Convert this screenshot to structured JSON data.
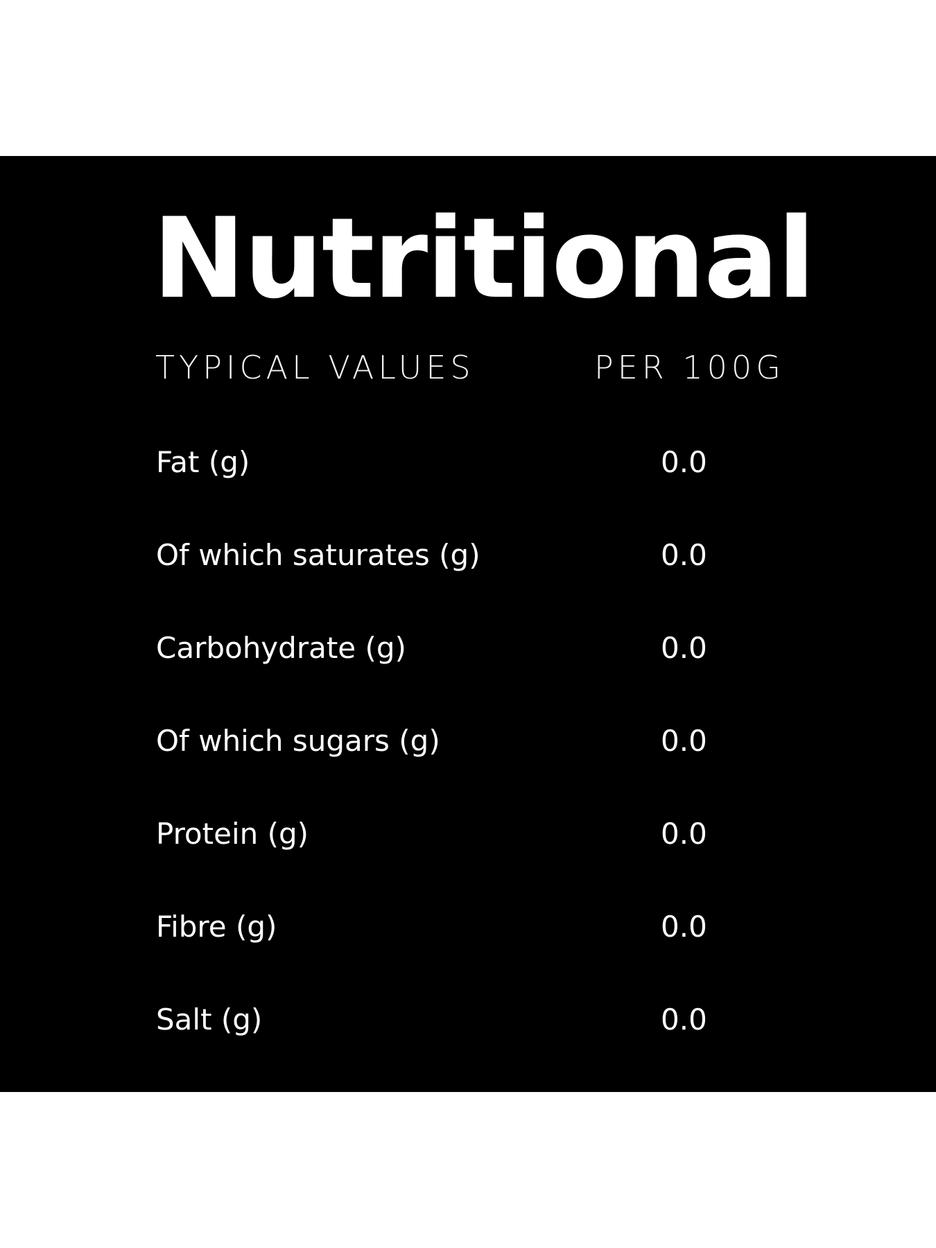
{
  "title": "Nutritional",
  "table": {
    "header": [
      "TYPICAL VALUES",
      "PER 100G"
    ],
    "rows": [
      [
        "Fat (g)",
        "0.0"
      ],
      [
        "Of which saturates (g)",
        "0.0"
      ],
      [
        "Carbohydrate (g)",
        "0.0"
      ],
      [
        "Of which sugars (g)",
        "0.0"
      ],
      [
        "Protein (g)",
        "0.0"
      ],
      [
        "Fibre (g)",
        "0.0"
      ],
      [
        "Salt (g)",
        "0.0"
      ]
    ]
  }
}
